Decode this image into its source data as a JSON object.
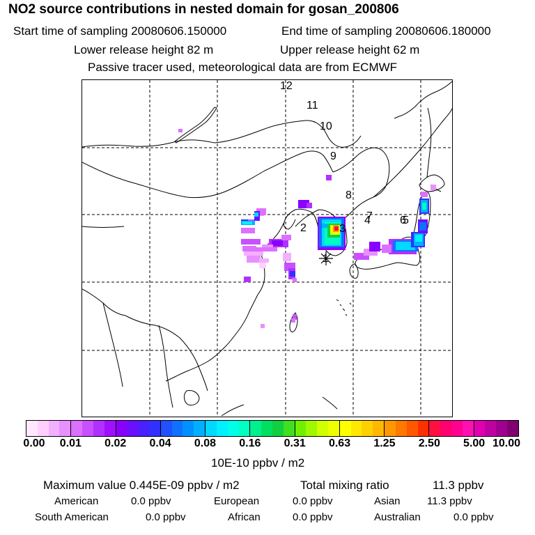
{
  "header": {
    "title": "NO2 source contributions in nested domain for gosan_200806",
    "start_label": "Start time of sampling 20080606.150000",
    "end_label": "End time of sampling 20080606.180000",
    "lower_label": "Lower release height   82 m",
    "upper_label": "Upper release height   62 m",
    "note": "Passive tracer used, meteorological data are from ECMWF"
  },
  "map": {
    "trajectory_labels": [
      "12",
      "11",
      "10",
      "9",
      "8",
      "7",
      "4",
      "6",
      "5",
      "3",
      "2",
      "1"
    ],
    "receptor_marker": "star-marker"
  },
  "colorbar": {
    "ticks": [
      "0.00",
      "0.01",
      "0.02",
      "0.04",
      "0.08",
      "0.16",
      "0.31",
      "0.63",
      "1.25",
      "2.50",
      "5.00",
      "10.00"
    ],
    "unit": "10E-10 ppbv / m2",
    "colors": [
      [
        "#ffe8ff",
        "#ffd0ff",
        "#f2b0ff",
        "#e890ff"
      ],
      [
        "#dc70ff",
        "#c850ff",
        "#b230ff",
        "#a010ff"
      ],
      [
        "#8a00ff",
        "#6a10ff",
        "#4a20ff",
        "#3030ff"
      ],
      [
        "#2050ff",
        "#1070ff",
        "#0090ff",
        "#00b0ff"
      ],
      [
        "#00d8ff",
        "#00f0ff",
        "#00ffe8",
        "#00ffc0"
      ],
      [
        "#00f090",
        "#00e060",
        "#10d040",
        "#40e020"
      ],
      [
        "#70f000",
        "#a0f800",
        "#d0ff00",
        "#f0ff00"
      ],
      [
        "#ffff00",
        "#ffe800",
        "#ffd000",
        "#ffb800"
      ],
      [
        "#ff9800",
        "#ff7800",
        "#ff5800",
        "#ff3000"
      ],
      [
        "#ff1040",
        "#ff0070",
        "#ff0090",
        "#ff10b0"
      ],
      [
        "#e000b0",
        "#c000a0",
        "#a00090",
        "#800070"
      ]
    ]
  },
  "stats": {
    "max_label": "Maximum value  0.445E-09 ppbv / m2",
    "total_label": "Total mixing ratio",
    "total_value": "11.3 ppbv",
    "regions": [
      {
        "name": "American",
        "value": "0.0 ppbv"
      },
      {
        "name": "European",
        "value": "0.0 ppbv"
      },
      {
        "name": "Asian",
        "value": "11.3 ppbv"
      },
      {
        "name": "South American",
        "value": "0.0 ppbv"
      },
      {
        "name": "African",
        "value": "0.0 ppbv"
      },
      {
        "name": "Australian",
        "value": "0.0 ppbv"
      }
    ]
  }
}
